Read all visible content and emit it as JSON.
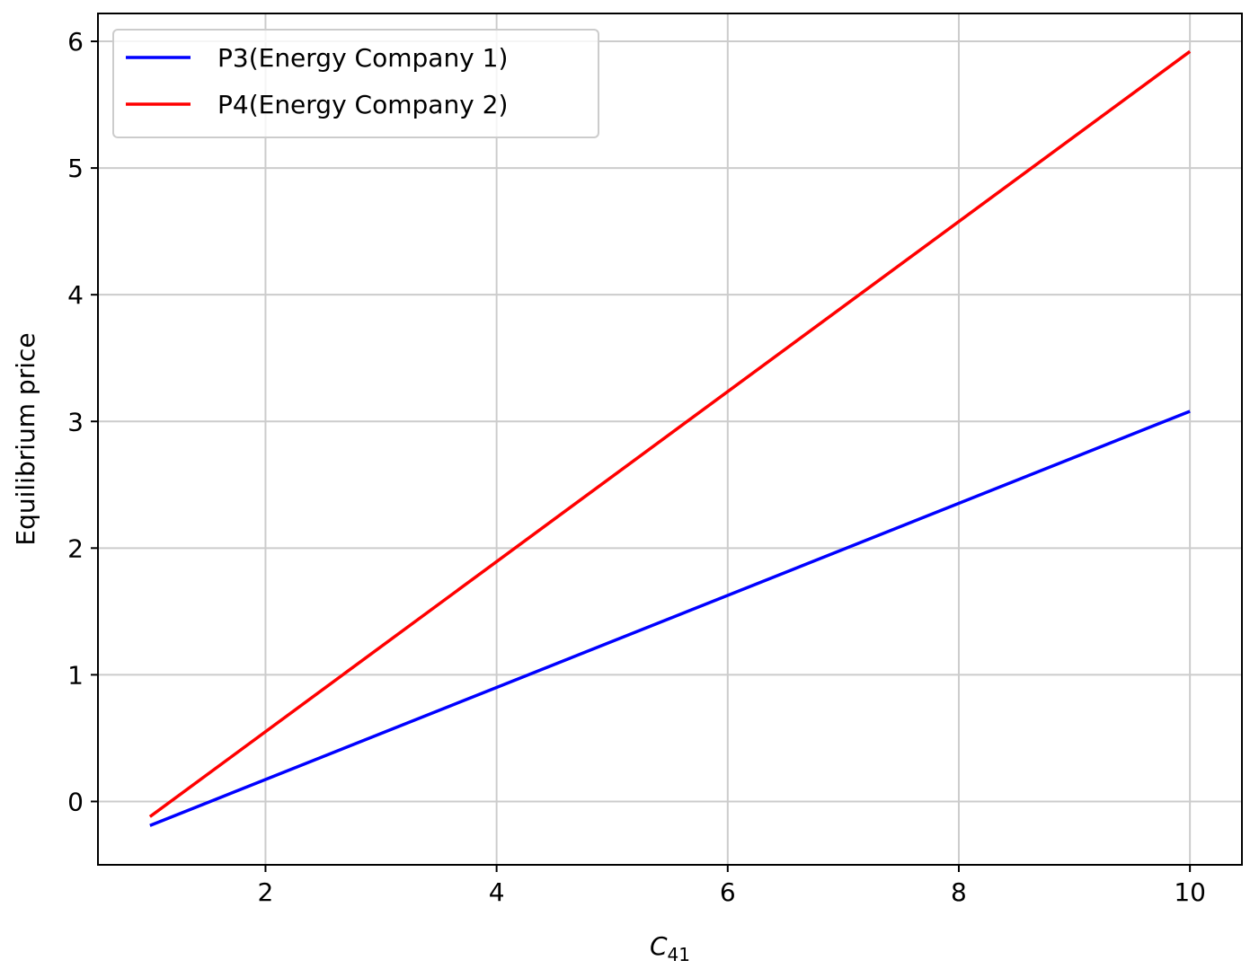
{
  "chart_data": {
    "type": "line",
    "title": "",
    "xlabel": "C",
    "xlabel_subscript": "41",
    "ylabel": "Equilibrium price",
    "xlim": [
      0.55,
      10.45
    ],
    "ylim": [
      -0.5,
      6.22
    ],
    "xticks": [
      2,
      4,
      6,
      8,
      10
    ],
    "yticks": [
      0,
      1,
      2,
      3,
      4,
      5,
      6
    ],
    "grid": true,
    "legend_position": "top-left",
    "series": [
      {
        "name": "P3(Energy Company 1)",
        "color": "#0000ff",
        "x": [
          1,
          10
        ],
        "y": [
          -0.19,
          3.08
        ]
      },
      {
        "name": "P4(Energy Company 2)",
        "color": "#ff0000",
        "x": [
          1,
          10
        ],
        "y": [
          -0.12,
          5.92
        ]
      }
    ]
  }
}
